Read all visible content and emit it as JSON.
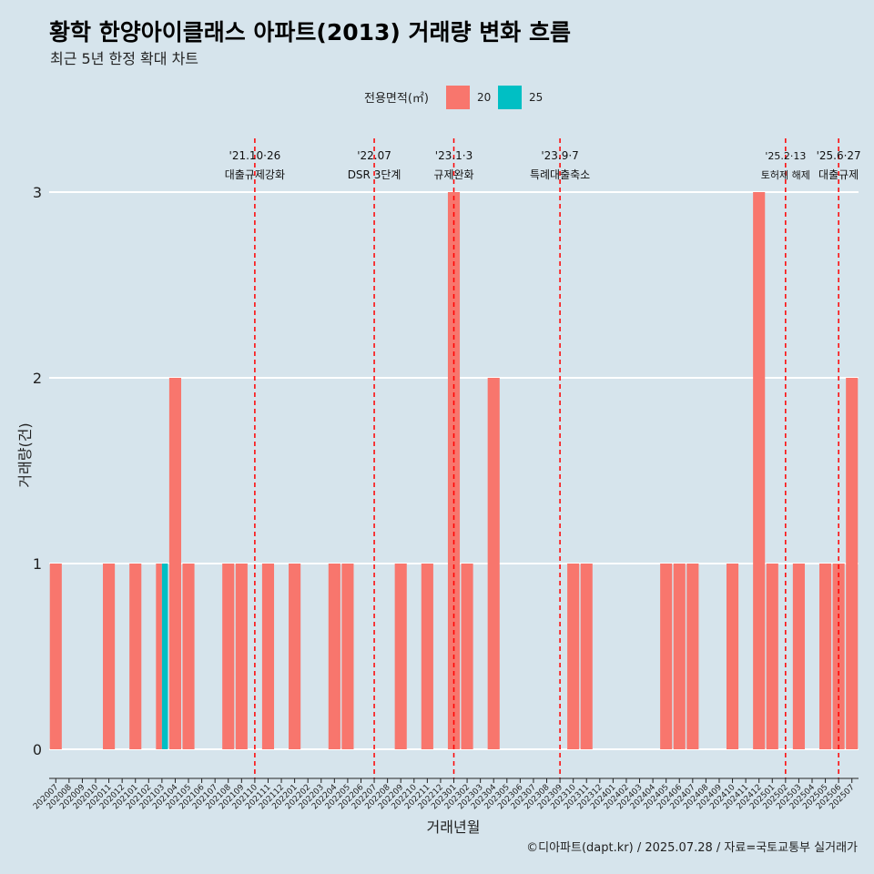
{
  "title": "황학 한양아이클래스 아파트(2013) 거래량 변화 흐름",
  "subtitle": "최근 5년 한정 확대 차트",
  "caption": "©디아파트(dapt.kr) / 2025.07.28 / 자료=국토교통부 실거래가",
  "colors": {
    "area_20": "#f8766d",
    "area_25": "#00bfc4",
    "event_line": "#ff0000",
    "background": "#d6e4ec",
    "grid": "#ffffff"
  },
  "chart_data": {
    "type": "bar",
    "xlabel": "거래년월",
    "ylabel": "거래량(건)",
    "ylim": [
      0,
      3
    ],
    "yticks": [
      0,
      1,
      2,
      3
    ],
    "grid": true,
    "legend": {
      "title": "전용면적(㎡)",
      "placement": "top",
      "entries": [
        "20",
        "25"
      ]
    },
    "categories": [
      "202007",
      "202008",
      "202009",
      "202010",
      "202011",
      "202012",
      "202101",
      "202102",
      "202103",
      "202104",
      "202105",
      "202106",
      "202107",
      "202108",
      "202109",
      "202110",
      "202111",
      "202112",
      "202201",
      "202202",
      "202203",
      "202204",
      "202205",
      "202206",
      "202207",
      "202208",
      "202209",
      "202210",
      "202211",
      "202212",
      "202301",
      "202302",
      "202303",
      "202304",
      "202305",
      "202306",
      "202307",
      "202308",
      "202309",
      "202310",
      "202311",
      "202312",
      "202401",
      "202402",
      "202403",
      "202404",
      "202405",
      "202406",
      "202407",
      "202408",
      "202409",
      "202410",
      "202411",
      "202412",
      "202501",
      "202502",
      "202503",
      "202504",
      "202505",
      "202506",
      "202507"
    ],
    "series": [
      {
        "name": "20",
        "values": [
          1,
          0,
          0,
          0,
          1,
          0,
          1,
          0,
          1,
          2,
          1,
          0,
          0,
          1,
          1,
          0,
          1,
          0,
          1,
          0,
          0,
          1,
          1,
          0,
          0,
          0,
          1,
          0,
          1,
          0,
          3,
          1,
          0,
          2,
          0,
          0,
          0,
          0,
          0,
          1,
          1,
          0,
          0,
          0,
          0,
          0,
          1,
          1,
          1,
          0,
          0,
          1,
          0,
          3,
          1,
          0,
          1,
          0,
          1,
          1,
          2
        ]
      },
      {
        "name": "25",
        "values": [
          0,
          0,
          0,
          0,
          0,
          0,
          0,
          0,
          1,
          0,
          0,
          0,
          0,
          0,
          0,
          0,
          0,
          0,
          0,
          0,
          0,
          0,
          0,
          0,
          0,
          0,
          0,
          0,
          0,
          0,
          0,
          0,
          0,
          0,
          0,
          0,
          0,
          0,
          0,
          0,
          0,
          0,
          0,
          0,
          0,
          0,
          0,
          0,
          0,
          0,
          0,
          0,
          0,
          0,
          0,
          0,
          0,
          0,
          0,
          0,
          0
        ]
      }
    ],
    "events": [
      {
        "month": "202110",
        "offset": 0.0,
        "date_label": "'21.10·26",
        "name": "대출규제강화",
        "small": false
      },
      {
        "month": "202207",
        "offset": 0.0,
        "date_label": "'22.07",
        "name": "DSR 3단계",
        "small": false
      },
      {
        "month": "202301",
        "offset": 0.0,
        "date_label": "'23.1·3",
        "name": "규제완화",
        "small": false
      },
      {
        "month": "202309",
        "offset": 0.0,
        "date_label": "'23.9·7",
        "name": "특례대출축소",
        "small": false
      },
      {
        "month": "202502",
        "offset": 0.0,
        "date_label": "'25.2·13",
        "name": "토허제 해제",
        "small": true
      },
      {
        "month": "202506",
        "offset": 0.0,
        "date_label": "'25.6·27",
        "name": "대출규제",
        "small": false
      }
    ]
  }
}
